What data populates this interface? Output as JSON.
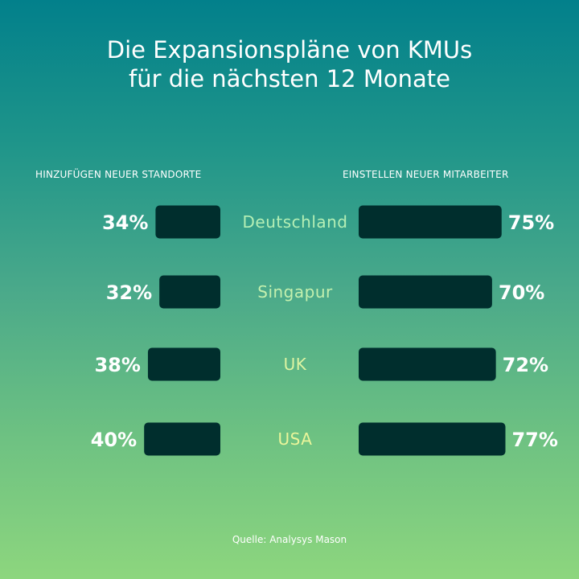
{
  "chart_data": {
    "type": "bar",
    "title": "Die Expansionspläne von KMUs\nfür die nächsten 12 Monate",
    "categories": [
      "Deutschland",
      "Singapur",
      "UK",
      "USA"
    ],
    "series": [
      {
        "name": "HINZUFÜGEN NEUER STANDORTE",
        "values": [
          34,
          32,
          38,
          40
        ]
      },
      {
        "name": "EINSTELLEN NEUER MITARBEITER",
        "values": [
          75,
          70,
          72,
          77
        ]
      }
    ],
    "value_suffix": "%",
    "orientation": "horizontal, diverging from center labels",
    "grid": false,
    "colors": {
      "bar": "#002e2d",
      "category_label_top": "#b5efb5",
      "category_label_bottom": "#eaf59a",
      "text": "#ffffff"
    }
  },
  "title_lines": [
    "Die Expansionspläne von KMUs",
    "für die nächsten 12 Monate"
  ],
  "source": "Quelle: Analysys Mason"
}
